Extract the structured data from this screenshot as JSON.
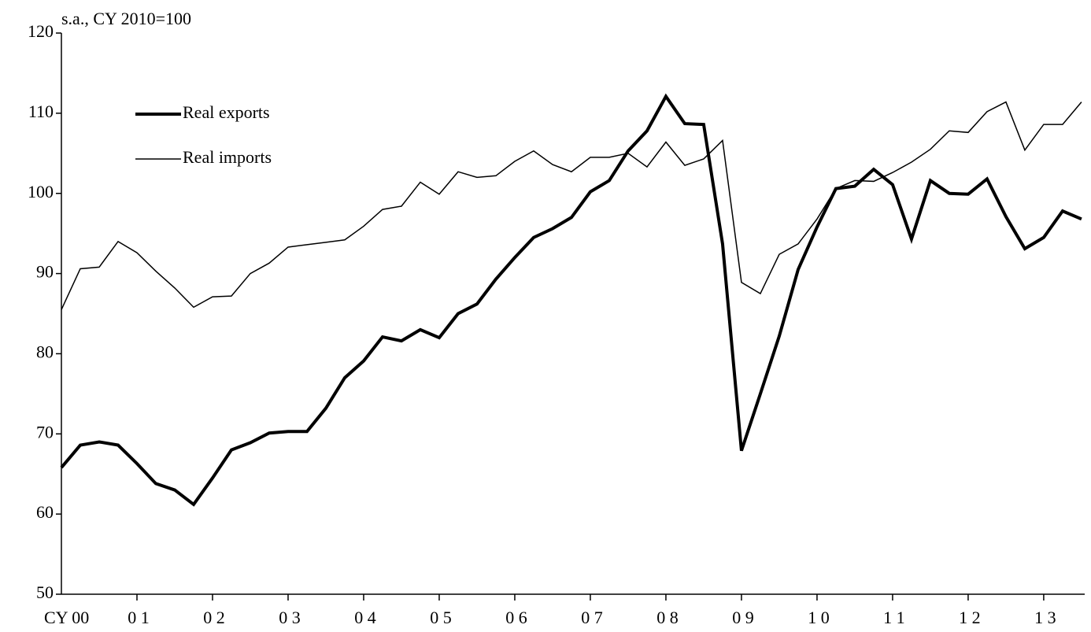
{
  "chart_data": {
    "type": "line",
    "y_label": "s.a., CY 2010=100",
    "categories": [
      "CY  00",
      null,
      null,
      null,
      "0 1",
      null,
      null,
      null,
      "0 2",
      null,
      null,
      null,
      "0 3",
      null,
      null,
      null,
      "0 4",
      null,
      null,
      null,
      "0 5",
      null,
      null,
      null,
      "0 6",
      null,
      null,
      null,
      "0 7",
      null,
      null,
      null,
      "0 8",
      null,
      null,
      null,
      "0 9",
      null,
      null,
      null,
      "1 0",
      null,
      null,
      null,
      "1 1",
      null,
      null,
      null,
      "1 2",
      null,
      null,
      null,
      "1 3",
      null,
      null
    ],
    "series": [
      {
        "name": "Real exports",
        "color": "#000000",
        "width": 4,
        "values": [
          65.8,
          68.6,
          69.0,
          68.6,
          66.3,
          63.8,
          63.0,
          61.2,
          64.5,
          68.0,
          68.9,
          70.1,
          70.3,
          70.3,
          73.2,
          77.0,
          79.1,
          82.1,
          81.6,
          83.0,
          82.0,
          85.0,
          86.2,
          89.3,
          92.0,
          94.5,
          95.6,
          97.0,
          100.2,
          101.6,
          105.3,
          107.8,
          112.1,
          108.7,
          108.6,
          93.7,
          67.9,
          75.0,
          82.2,
          90.5,
          95.8,
          100.6,
          100.9,
          103.0,
          101.1,
          94.3,
          101.6,
          100.0,
          99.9,
          101.8,
          97.1,
          93.1,
          94.5,
          97.8,
          96.8
        ]
      },
      {
        "name": "Real imports",
        "color": "#000000",
        "width": 1.5,
        "values": [
          85.5,
          90.6,
          90.8,
          94.0,
          92.6,
          90.3,
          88.2,
          85.8,
          87.1,
          87.2,
          90.0,
          91.3,
          93.3,
          93.6,
          93.9,
          94.2,
          95.9,
          98.0,
          98.4,
          101.4,
          99.9,
          102.7,
          102.0,
          102.2,
          104.0,
          105.3,
          103.6,
          102.7,
          104.5,
          104.5,
          105.0,
          103.3,
          106.4,
          103.5,
          104.3,
          106.6,
          88.9,
          87.5,
          92.4,
          93.7,
          96.8,
          100.6,
          101.6,
          101.5,
          102.6,
          103.9,
          105.5,
          107.8,
          107.6,
          110.2,
          111.4,
          105.4,
          108.6,
          108.6,
          111.4
        ]
      }
    ],
    "ylim": [
      50,
      120
    ],
    "yticks": [
      50,
      60,
      70,
      80,
      90,
      100,
      110,
      120
    ],
    "grid": false,
    "legend": "upper left"
  }
}
